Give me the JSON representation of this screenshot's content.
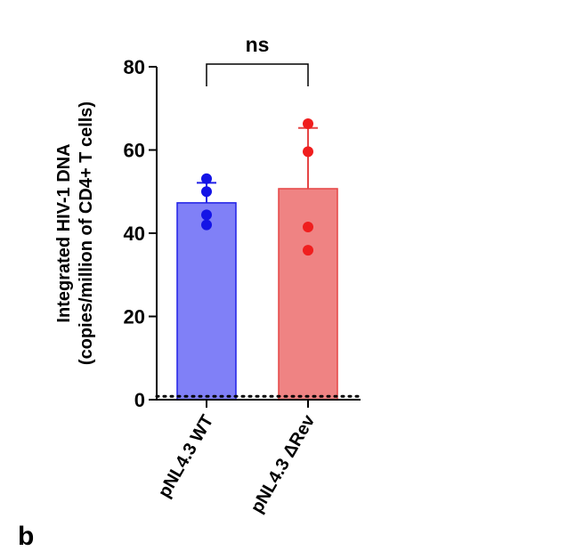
{
  "panel_letter": "b",
  "chart_data": {
    "type": "bar",
    "ylabel_line1": "Integrated HIV-1 DNA",
    "ylabel_line2": "(copies/million of CD4+ T cells)",
    "ylim": [
      0,
      80
    ],
    "yticks": [
      "0",
      "20",
      "40",
      "60",
      "80"
    ],
    "categories": [
      "pNL4.3 WT",
      "pNL4.3 ΔRev"
    ],
    "bars": [
      {
        "category": "pNL4.3 WT",
        "mean": 47.3,
        "sd": 4.8,
        "points": [
          53.1,
          50.0,
          44.4,
          42.0
        ],
        "fill": "#8080f7",
        "stroke": "#2020e6",
        "point_color": "#1414e6"
      },
      {
        "category": "pNL4.3 ΔRev",
        "mean": 50.7,
        "sd": 14.6,
        "points": [
          66.3,
          59.6,
          41.5,
          35.9
        ],
        "fill": "#ef8383",
        "stroke": "#e64545",
        "point_color": "#f01e1e"
      }
    ],
    "reference_line": {
      "y": 0.8,
      "style": "dotted"
    },
    "significance": {
      "label": "ns",
      "between": [
        "pNL4.3 WT",
        "pNL4.3 ΔRev"
      ]
    },
    "grid": false,
    "legend": "none"
  }
}
